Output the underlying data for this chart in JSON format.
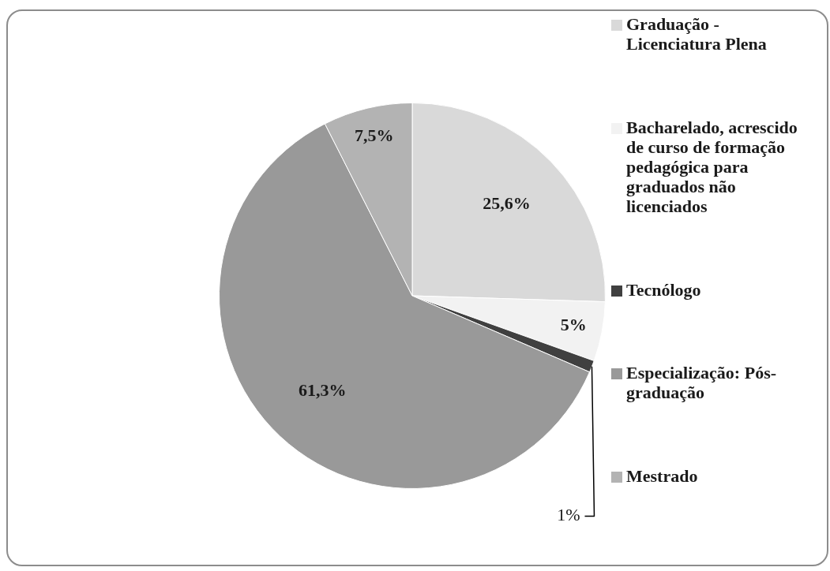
{
  "chart_data": {
    "type": "pie",
    "categories": [
      "Graduação - Licenciatura Plena",
      "Bacharelado, acrescido de curso de formação pedagógica para graduados não licenciados",
      "Tecnólogo",
      "Especialização: Pós-graduação",
      "Mestrado"
    ],
    "values": [
      25.6,
      5,
      1,
      61.3,
      7.5
    ],
    "colors": [
      "#d9d9d9",
      "#f2f2f2",
      "#404040",
      "#999999",
      "#b3b3b3"
    ],
    "value_labels": [
      "25,6%",
      "5%",
      "1%",
      "61,3%",
      "7,5%"
    ],
    "legend": "right"
  }
}
